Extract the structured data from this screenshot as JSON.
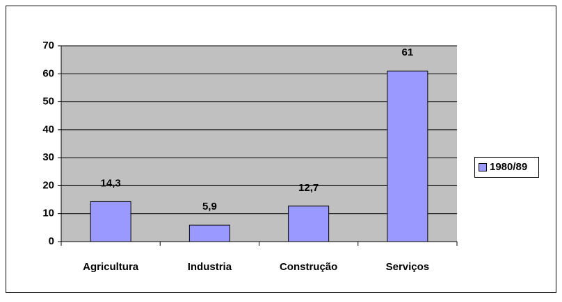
{
  "chart_data": {
    "type": "bar",
    "categories": [
      "Agricultura",
      "Industria",
      "Construção",
      "Serviços"
    ],
    "series": [
      {
        "name": "1980/89",
        "color": "#9999ff",
        "values": [
          14.3,
          5.9,
          12.7,
          61
        ],
        "value_labels": [
          "14,3",
          "5,9",
          "12,7",
          "61"
        ]
      }
    ],
    "ylim": [
      0,
      70
    ],
    "yticks": [
      0,
      10,
      20,
      30,
      40,
      50,
      60,
      70
    ],
    "grid": true,
    "legend": "right"
  }
}
